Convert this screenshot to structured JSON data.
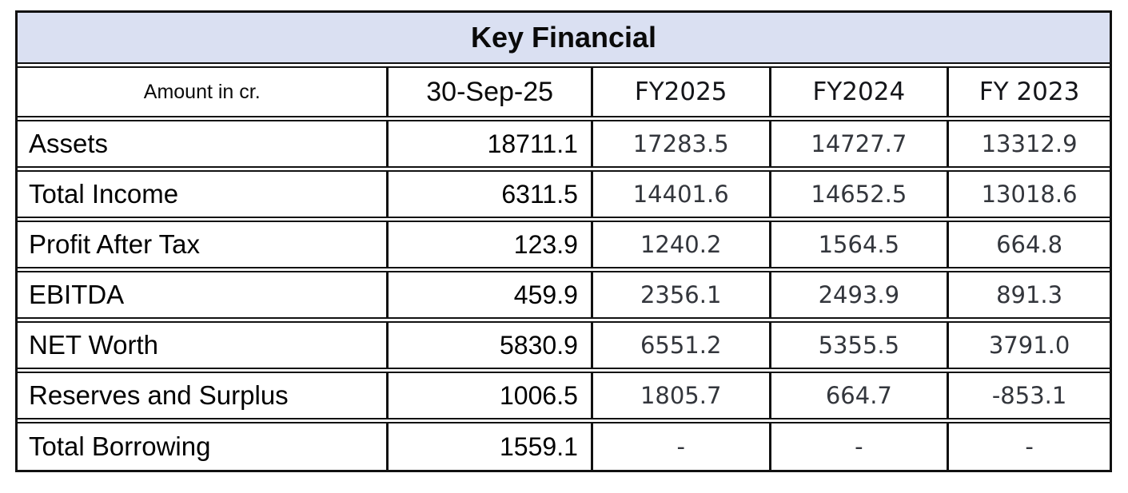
{
  "table": {
    "title": "Key Financial",
    "unit_label": "Amount in cr.",
    "columns": [
      "30-Sep-25",
      "FY2025",
      "FY2024",
      "FY 2023"
    ],
    "rows": [
      {
        "label": "Assets",
        "values": [
          "18711.1",
          "17283.5",
          "14727.7",
          "13312.9"
        ]
      },
      {
        "label": "Total Income",
        "values": [
          "6311.5",
          "14401.6",
          "14652.5",
          "13018.6"
        ]
      },
      {
        "label": "Profit After Tax",
        "values": [
          "123.9",
          "1240.2",
          "1564.5",
          "664.8"
        ]
      },
      {
        "label": "EBITDA",
        "values": [
          "459.9",
          "2356.1",
          "2493.9",
          "891.3"
        ]
      },
      {
        "label": "NET Worth",
        "values": [
          "5830.9",
          "6551.2",
          "5355.5",
          "3791.0"
        ]
      },
      {
        "label": "Reserves and Surplus",
        "values": [
          "1006.5",
          "1805.7",
          "664.7",
          "-853.1"
        ]
      },
      {
        "label": "Total Borrowing",
        "values": [
          "1559.1",
          "-",
          "-",
          "-"
        ]
      }
    ],
    "colors": {
      "title_background": "#dae0f2",
      "border": "#111111",
      "primary_text": "#000000",
      "fy_text": "#33363c"
    }
  },
  "chart_data": {
    "type": "table",
    "title": "Key Financial",
    "unit": "Amount in cr.",
    "categories": [
      "30-Sep-25",
      "FY2025",
      "FY2024",
      "FY 2023"
    ],
    "series": [
      {
        "name": "Assets",
        "values": [
          18711.1,
          17283.5,
          14727.7,
          13312.9
        ]
      },
      {
        "name": "Total Income",
        "values": [
          6311.5,
          14401.6,
          14652.5,
          13018.6
        ]
      },
      {
        "name": "Profit After Tax",
        "values": [
          123.9,
          1240.2,
          1564.5,
          664.8
        ]
      },
      {
        "name": "EBITDA",
        "values": [
          459.9,
          2356.1,
          2493.9,
          891.3
        ]
      },
      {
        "name": "NET Worth",
        "values": [
          5830.9,
          6551.2,
          5355.5,
          3791.0
        ]
      },
      {
        "name": "Reserves and Surplus",
        "values": [
          1006.5,
          1805.7,
          664.7,
          -853.1
        ]
      },
      {
        "name": "Total Borrowing",
        "values": [
          1559.1,
          null,
          null,
          null
        ]
      }
    ]
  }
}
